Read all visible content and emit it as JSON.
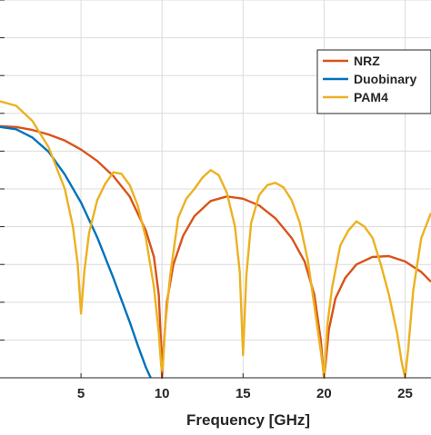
{
  "chart_data": {
    "type": "line",
    "title": "",
    "xlabel": "Frequency [GHz]",
    "ylabel": "",
    "xlim": [
      0,
      26.6
    ],
    "ylim": [
      -90,
      -40
    ],
    "y_axis_scale": "dB",
    "grid": true,
    "legend_position": "top-right",
    "x_ticks": [
      5,
      10,
      15,
      20,
      25
    ],
    "x_tick_labels": [
      "5",
      "10",
      "15",
      "20",
      "25"
    ],
    "y_gridlines": [
      -85,
      -80,
      -75,
      -70,
      -65,
      -60,
      -55,
      -50,
      -45,
      -40
    ],
    "series": [
      {
        "name": "NRZ",
        "color": "#D95319",
        "x": [
          0,
          1,
          2,
          3,
          4,
          5,
          6,
          7,
          8,
          9,
          9.5,
          9.8,
          9.95,
          10,
          10.1,
          10.3,
          10.7,
          11.3,
          12,
          13,
          14,
          15,
          16,
          17,
          18,
          18.8,
          19.4,
          19.8,
          19.95,
          20,
          20.1,
          20.3,
          20.7,
          21.3,
          22,
          23,
          24,
          25,
          26,
          26.6
        ],
        "y": [
          -56.7,
          -56.8,
          -57.2,
          -57.8,
          -58.6,
          -59.8,
          -61.3,
          -63.3,
          -66,
          -70.5,
          -74,
          -79,
          -86,
          -90,
          -86,
          -80,
          -75,
          -71.2,
          -68.6,
          -66.6,
          -66,
          -66.3,
          -67.2,
          -68.9,
          -71.5,
          -74.6,
          -79,
          -85,
          -89,
          -90,
          -88,
          -83.6,
          -79.5,
          -76.8,
          -75,
          -74,
          -73.9,
          -74.6,
          -76,
          -77.3
        ]
      },
      {
        "name": "Duobinary",
        "color": "#0072BD",
        "x": [
          0,
          1,
          2,
          3,
          4,
          5,
          6,
          7,
          8,
          8.5,
          9,
          9.3
        ],
        "y": [
          -56.8,
          -57.1,
          -58.2,
          -60.1,
          -63.1,
          -66.8,
          -71.4,
          -76.8,
          -82.6,
          -85.7,
          -88.6,
          -90
        ]
      },
      {
        "name": "PAM4",
        "color": "#EDB120",
        "x": [
          0,
          1,
          2,
          3,
          4,
          4.5,
          4.8,
          5,
          5.2,
          5.5,
          6,
          6.5,
          7,
          7.5,
          8,
          8.5,
          9,
          9.5,
          9.8,
          9.95,
          10,
          10.05,
          10.2,
          10.5,
          11,
          11.5,
          12,
          12.5,
          13,
          13.5,
          14,
          14.5,
          14.8,
          15,
          15.2,
          15.5,
          16,
          16.5,
          17,
          17.5,
          18,
          18.5,
          19,
          19.5,
          19.8,
          19.95,
          20,
          20.05,
          20.2,
          20.5,
          21,
          21.5,
          22,
          22.5,
          23,
          23.5,
          24,
          24.5,
          24.8,
          25,
          25.2,
          25.5,
          26,
          26.6
        ],
        "y": [
          -53.4,
          -54,
          -56,
          -59.5,
          -65,
          -70,
          -75,
          -81.5,
          -76,
          -70.8,
          -66.5,
          -64.3,
          -62.8,
          -63,
          -64.5,
          -67.2,
          -71.5,
          -78,
          -84,
          -88.5,
          -89,
          -88.5,
          -83,
          -76.5,
          -68.8,
          -66.3,
          -65,
          -63.5,
          -62.5,
          -63.2,
          -65.5,
          -70,
          -76,
          -87,
          -76.5,
          -69.5,
          -65.8,
          -64.5,
          -64.2,
          -64.8,
          -66.5,
          -69.5,
          -74.5,
          -82,
          -86.5,
          -89,
          -90,
          -88.5,
          -83,
          -78,
          -72.5,
          -70.5,
          -69.3,
          -70,
          -71.5,
          -75,
          -79,
          -84,
          -88,
          -90,
          -86,
          -78.5,
          -71.5,
          -68.2
        ]
      }
    ]
  }
}
